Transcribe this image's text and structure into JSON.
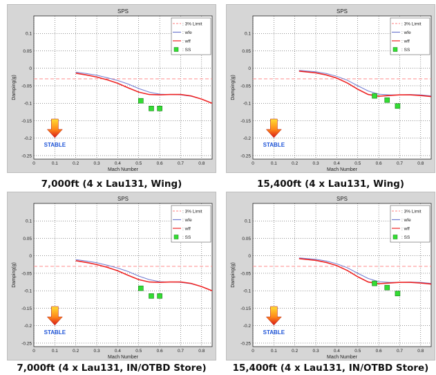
{
  "chart_data": [
    {
      "type": "line",
      "title": "SPS",
      "xlabel": "Mach Number",
      "ylabel": "Damping(g)",
      "xlim": [
        0,
        0.85
      ],
      "ylim": [
        -0.26,
        0.15
      ],
      "xticks": [
        "0",
        "0.1",
        "0.2",
        "0.3",
        "0.4",
        "0.5",
        "0.6",
        "0.7",
        "0.8"
      ],
      "yticks": [
        "0.1",
        "0.05",
        "0",
        "-0.05",
        "-0.1",
        "-0.15",
        "-0.2",
        "-0.25"
      ],
      "grid": true,
      "legend_position": "top-right",
      "annotation": "STABLE",
      "caption": "7,000ft (4 x Lau131, Wing)",
      "series": [
        {
          "name": ": 3% Limit",
          "color": "#ff9999",
          "style": "dashed",
          "x": [
            0,
            0.85
          ],
          "y": [
            -0.03,
            -0.03
          ]
        },
        {
          "name": ": wfe",
          "color": "#6f7ad0",
          "style": "solid",
          "x": [
            0.2,
            0.25,
            0.3,
            0.35,
            0.4,
            0.45,
            0.5,
            0.55,
            0.6,
            0.65,
            0.7,
            0.75,
            0.8,
            0.85
          ],
          "y": [
            -0.011,
            -0.015,
            -0.02,
            -0.027,
            -0.035,
            -0.045,
            -0.058,
            -0.068,
            -0.074,
            -0.075,
            -0.076,
            -0.08,
            -0.088,
            -0.1
          ]
        },
        {
          "name": ": wff",
          "color": "#ee2222",
          "style": "solid",
          "x": [
            0.2,
            0.25,
            0.3,
            0.35,
            0.4,
            0.45,
            0.5,
            0.55,
            0.6,
            0.65,
            0.7,
            0.75,
            0.8,
            0.85
          ],
          "y": [
            -0.014,
            -0.019,
            -0.025,
            -0.033,
            -0.043,
            -0.056,
            -0.068,
            -0.075,
            -0.076,
            -0.075,
            -0.075,
            -0.079,
            -0.088,
            -0.1
          ]
        },
        {
          "name": ": SS",
          "color": "#33dd33",
          "style": "marker",
          "x": [
            0.51,
            0.56,
            0.6
          ],
          "y": [
            -0.093,
            -0.115,
            -0.115
          ]
        }
      ]
    },
    {
      "type": "line",
      "title": "SPS",
      "xlabel": "Mach Number",
      "ylabel": "Damping(g)",
      "xlim": [
        0,
        0.85
      ],
      "ylim": [
        -0.26,
        0.15
      ],
      "xticks": [
        "0",
        "0.1",
        "0.2",
        "0.3",
        "0.4",
        "0.5",
        "0.6",
        "0.7",
        "0.8"
      ],
      "yticks": [
        "0.1",
        "0.05",
        "0",
        "-0.05",
        "-0.1",
        "-0.15",
        "-0.2",
        "-0.25"
      ],
      "grid": true,
      "legend_position": "top-right",
      "annotation": "STABLE",
      "caption": "15,400ft (4 x Lau131, Wing)",
      "series": [
        {
          "name": ": 3% Limit",
          "color": "#ff9999",
          "style": "dashed",
          "x": [
            0,
            0.85
          ],
          "y": [
            -0.03,
            -0.03
          ]
        },
        {
          "name": ": wfe",
          "color": "#6f7ad0",
          "style": "solid",
          "x": [
            0.22,
            0.3,
            0.35,
            0.4,
            0.45,
            0.5,
            0.55,
            0.6,
            0.65,
            0.7,
            0.75,
            0.8,
            0.85
          ],
          "y": [
            -0.006,
            -0.01,
            -0.015,
            -0.023,
            -0.034,
            -0.05,
            -0.065,
            -0.074,
            -0.076,
            -0.076,
            -0.075,
            -0.076,
            -0.079
          ]
        },
        {
          "name": ": wff",
          "color": "#ee2222",
          "style": "solid",
          "x": [
            0.22,
            0.3,
            0.35,
            0.4,
            0.45,
            0.5,
            0.55,
            0.6,
            0.65,
            0.7,
            0.75,
            0.8,
            0.85
          ],
          "y": [
            -0.008,
            -0.013,
            -0.019,
            -0.028,
            -0.042,
            -0.06,
            -0.075,
            -0.08,
            -0.078,
            -0.076,
            -0.076,
            -0.078,
            -0.081
          ]
        },
        {
          "name": ": SS",
          "color": "#33dd33",
          "style": "marker",
          "x": [
            0.58,
            0.64,
            0.69
          ],
          "y": [
            -0.079,
            -0.091,
            -0.108
          ]
        }
      ]
    },
    {
      "type": "line",
      "title": "SPS",
      "xlabel": "Mach Number",
      "ylabel": "Damping(g)",
      "xlim": [
        0,
        0.85
      ],
      "ylim": [
        -0.26,
        0.15
      ],
      "xticks": [
        "0",
        "0.1",
        "0.2",
        "0.3",
        "0.4",
        "0.5",
        "0.6",
        "0.7",
        "0.8"
      ],
      "yticks": [
        "0.1",
        "0.05",
        "0",
        "-0.05",
        "-0.1",
        "-0.15",
        "-0.2",
        "-0.25"
      ],
      "grid": true,
      "legend_position": "top-right",
      "annotation": "STABLE",
      "caption": "7,000ft (4 x Lau131, IN/OTBD Store)",
      "series": [
        {
          "name": ": 3% Limit",
          "color": "#ff9999",
          "style": "dashed",
          "x": [
            0,
            0.85
          ],
          "y": [
            -0.03,
            -0.03
          ]
        },
        {
          "name": ": wfe",
          "color": "#6f7ad0",
          "style": "solid",
          "x": [
            0.2,
            0.25,
            0.3,
            0.35,
            0.4,
            0.45,
            0.5,
            0.55,
            0.6,
            0.65,
            0.7,
            0.75,
            0.8,
            0.85
          ],
          "y": [
            -0.011,
            -0.015,
            -0.02,
            -0.027,
            -0.035,
            -0.045,
            -0.058,
            -0.068,
            -0.074,
            -0.075,
            -0.076,
            -0.08,
            -0.088,
            -0.1
          ]
        },
        {
          "name": ": wff",
          "color": "#ee2222",
          "style": "solid",
          "x": [
            0.2,
            0.25,
            0.3,
            0.35,
            0.4,
            0.45,
            0.5,
            0.55,
            0.6,
            0.65,
            0.7,
            0.75,
            0.8,
            0.85
          ],
          "y": [
            -0.014,
            -0.019,
            -0.025,
            -0.033,
            -0.043,
            -0.056,
            -0.068,
            -0.075,
            -0.076,
            -0.075,
            -0.075,
            -0.079,
            -0.088,
            -0.1
          ]
        },
        {
          "name": ": SS",
          "color": "#33dd33",
          "style": "marker",
          "x": [
            0.51,
            0.56,
            0.6
          ],
          "y": [
            -0.093,
            -0.115,
            -0.115
          ]
        }
      ]
    },
    {
      "type": "line",
      "title": "SPS",
      "xlabel": "Mach Number",
      "ylabel": "Damping(g)",
      "xlim": [
        0,
        0.85
      ],
      "ylim": [
        -0.26,
        0.15
      ],
      "xticks": [
        "0",
        "0.1",
        "0.2",
        "0.3",
        "0.4",
        "0.5",
        "0.6",
        "0.7",
        "0.8"
      ],
      "yticks": [
        "0.1",
        "0.05",
        "0",
        "-0.05",
        "-0.1",
        "-0.15",
        "-0.2",
        "-0.25"
      ],
      "grid": true,
      "legend_position": "top-right",
      "annotation": "STABLE",
      "caption": "15,400ft (4 x Lau131, IN/OTBD Store)",
      "series": [
        {
          "name": ": 3% Limit",
          "color": "#ff9999",
          "style": "dashed",
          "x": [
            0,
            0.85
          ],
          "y": [
            -0.03,
            -0.03
          ]
        },
        {
          "name": ": wfe",
          "color": "#6f7ad0",
          "style": "solid",
          "x": [
            0.22,
            0.3,
            0.35,
            0.4,
            0.45,
            0.5,
            0.55,
            0.6,
            0.65,
            0.7,
            0.75,
            0.8,
            0.85
          ],
          "y": [
            -0.006,
            -0.01,
            -0.015,
            -0.023,
            -0.034,
            -0.05,
            -0.065,
            -0.074,
            -0.076,
            -0.076,
            -0.075,
            -0.076,
            -0.079
          ]
        },
        {
          "name": ": wff",
          "color": "#ee2222",
          "style": "solid",
          "x": [
            0.22,
            0.3,
            0.35,
            0.4,
            0.45,
            0.5,
            0.55,
            0.6,
            0.65,
            0.7,
            0.75,
            0.8,
            0.85
          ],
          "y": [
            -0.008,
            -0.013,
            -0.019,
            -0.028,
            -0.042,
            -0.06,
            -0.075,
            -0.08,
            -0.078,
            -0.076,
            -0.076,
            -0.078,
            -0.081
          ]
        },
        {
          "name": ": SS",
          "color": "#33dd33",
          "style": "marker",
          "x": [
            0.58,
            0.64,
            0.69
          ],
          "y": [
            -0.079,
            -0.091,
            -0.108
          ]
        }
      ]
    }
  ]
}
